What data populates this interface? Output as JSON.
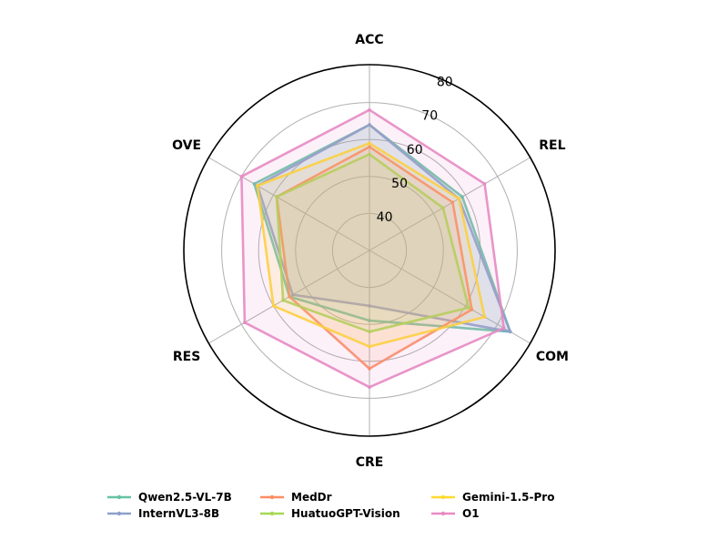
{
  "chart_data": {
    "type": "radar",
    "axes": [
      "ACC",
      "REL",
      "COM",
      "CRE",
      "RES",
      "OVE"
    ],
    "r_range": [
      30,
      80
    ],
    "r_ticks": [
      40,
      50,
      60,
      70,
      80
    ],
    "grid": true,
    "legend_position": "bottom",
    "series": [
      {
        "name": "Qwen2.5-VL-7B",
        "color": "#66C2A5",
        "values": [
          64,
          59,
          74,
          49,
          55,
          66
        ]
      },
      {
        "name": "InternVL3-8B",
        "color": "#8DA0CB",
        "values": [
          64,
          58,
          74,
          45,
          54,
          65
        ]
      },
      {
        "name": "MedDr",
        "color": "#FC8D62",
        "values": [
          58,
          56,
          62,
          62,
          55,
          59
        ]
      },
      {
        "name": "HuatuoGPT-Vision",
        "color": "#A6D854",
        "values": [
          56,
          53,
          61,
          52,
          57,
          59
        ]
      },
      {
        "name": "Gemini-1.5-Pro",
        "color": "#FFD92F",
        "values": [
          59,
          58,
          66,
          56,
          60,
          65
        ]
      },
      {
        "name": "O1",
        "color": "#E78AC3",
        "values": [
          68,
          66,
          72,
          67,
          69,
          70
        ]
      }
    ]
  }
}
